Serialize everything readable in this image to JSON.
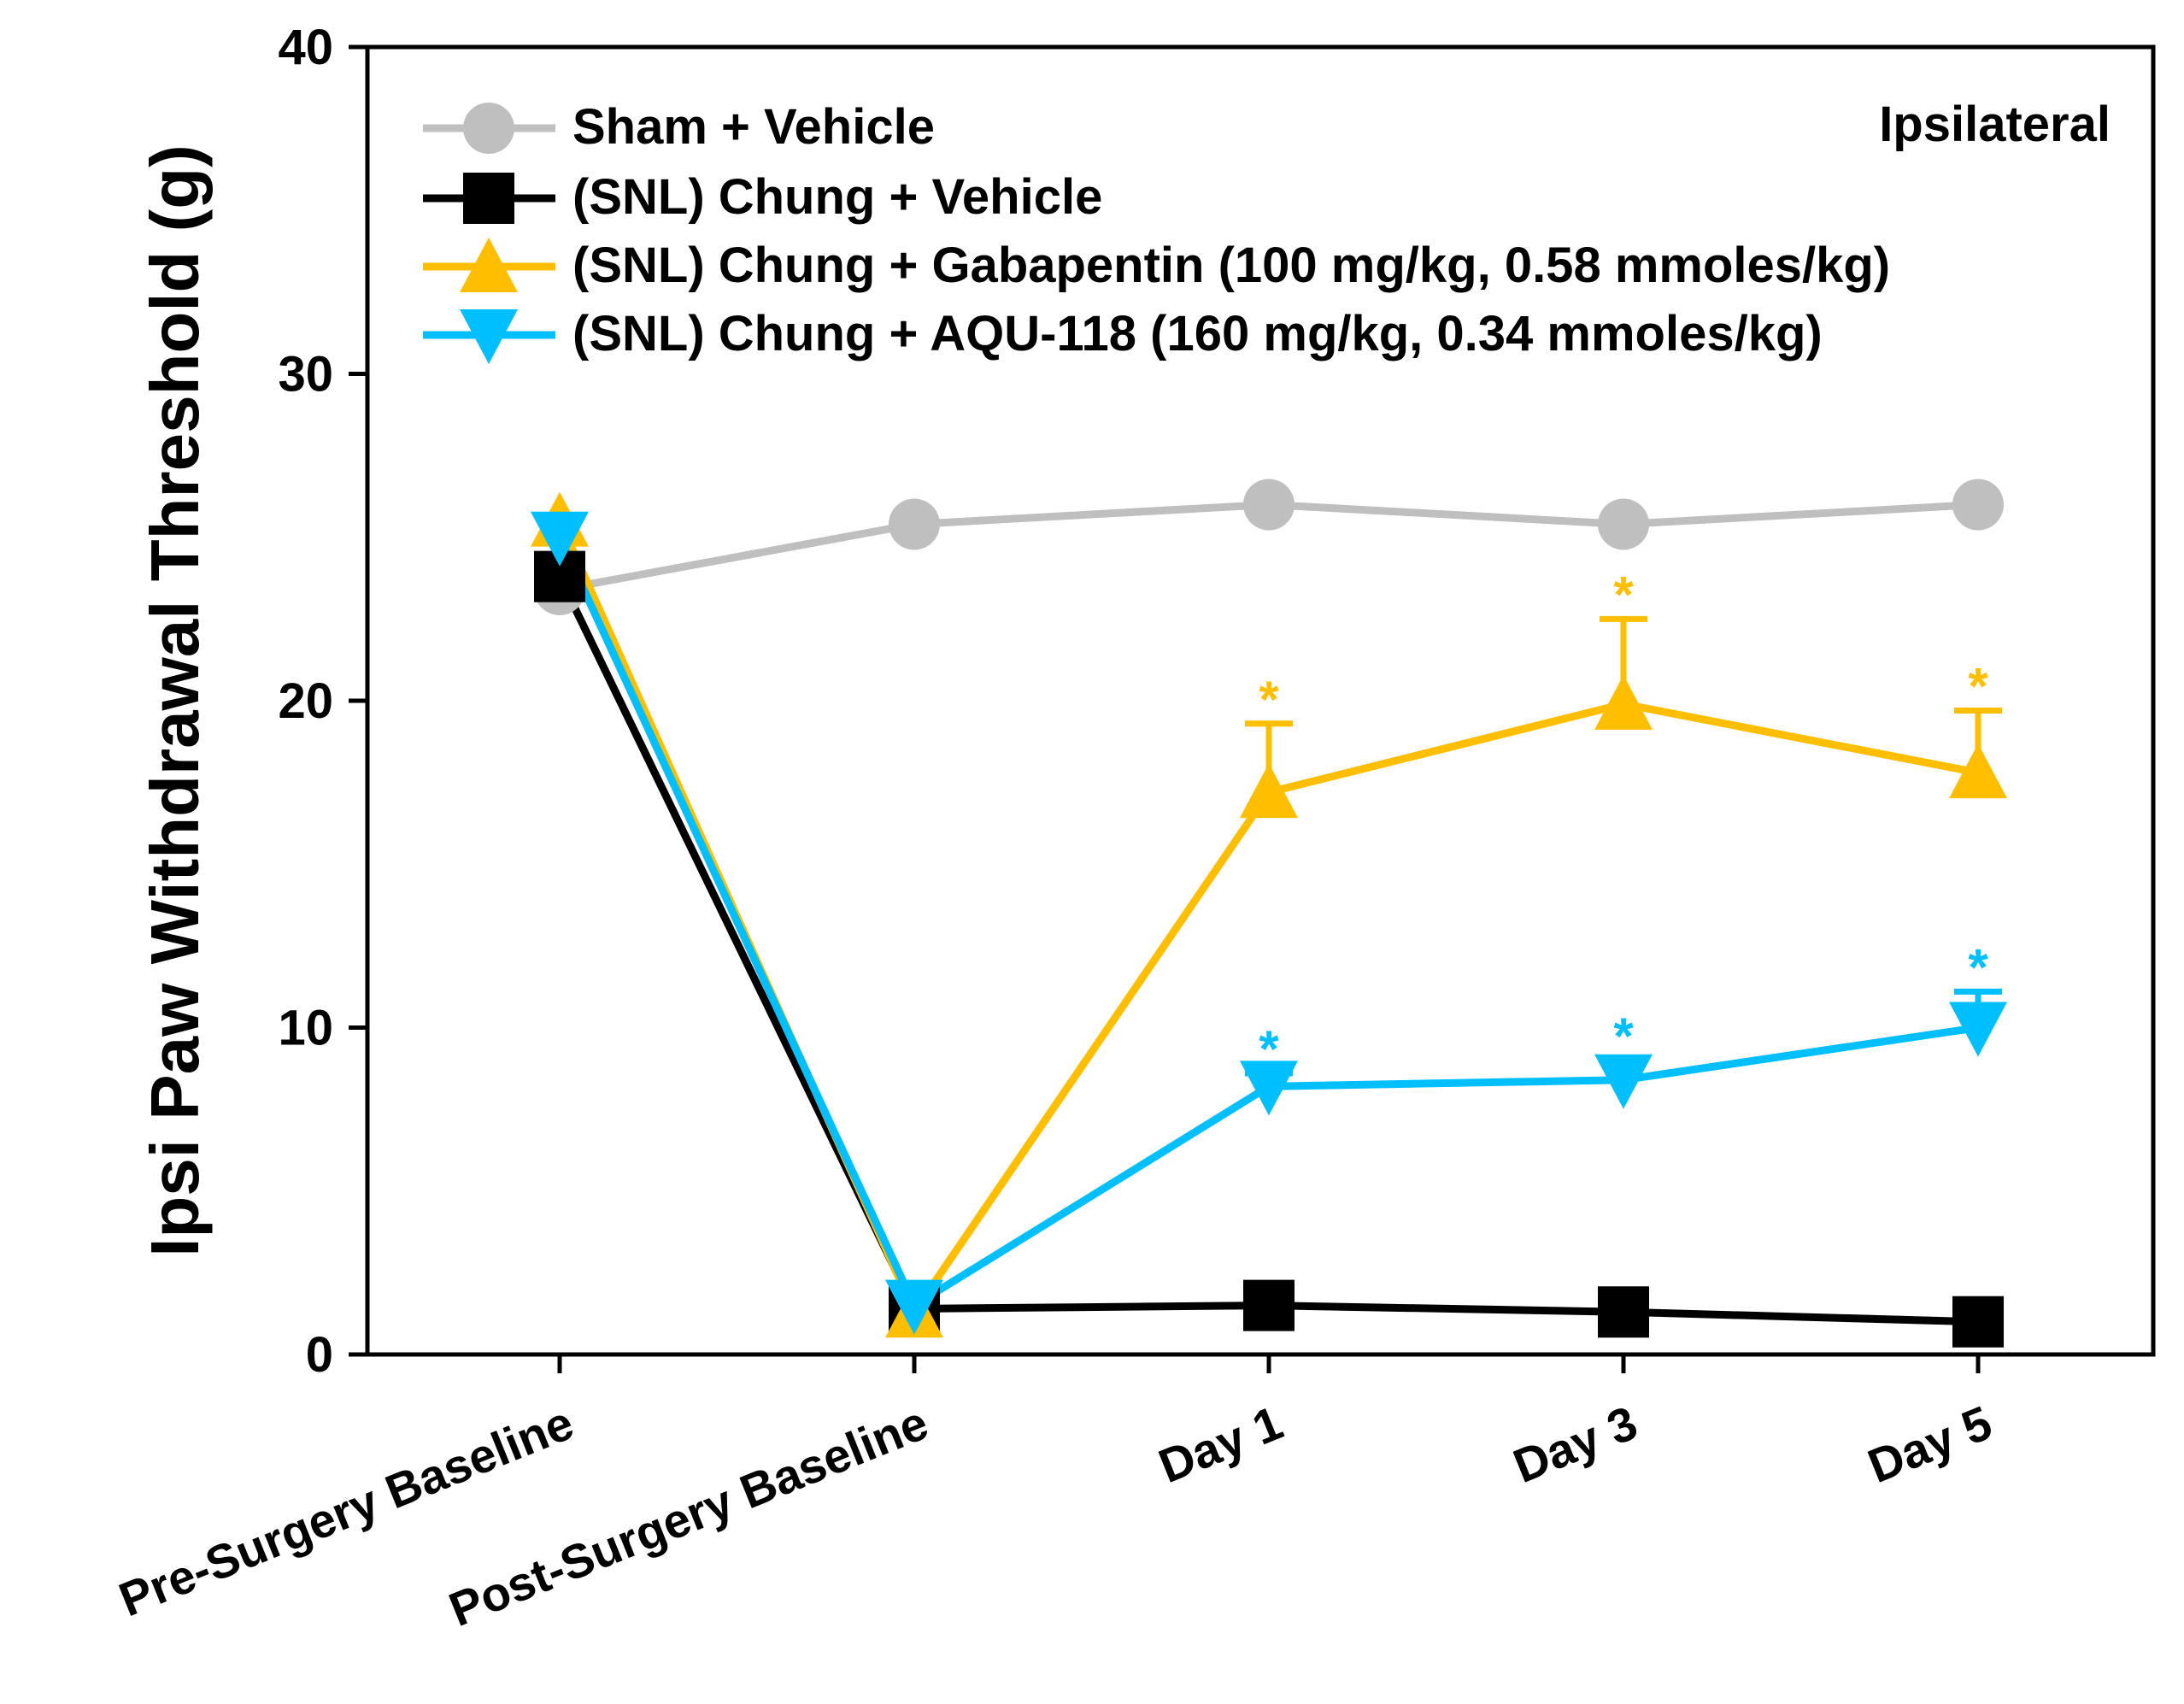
{
  "chart_data": {
    "type": "line",
    "ylabel": "Ipsi Paw Withdrawal Threshold (g)",
    "xlabel": "",
    "annotation": "Ipsilateral",
    "ylim": [
      0,
      40
    ],
    "yticks": [
      0,
      10,
      20,
      30,
      40
    ],
    "grid": false,
    "legend_position": "top-left",
    "categories": [
      "Pre-Surgery Baseline",
      "Post-Surgery Baseline",
      "Day 1",
      "Day 3",
      "Day 5"
    ],
    "series": [
      {
        "name": "Sham + Vehicle",
        "color": "#bfbfbf",
        "marker": "circle",
        "values": [
          23.4,
          25.4,
          26.0,
          25.4,
          26.0
        ],
        "errors": [
          0,
          0,
          0,
          0,
          0
        ],
        "significant": [
          false,
          false,
          false,
          false,
          false
        ]
      },
      {
        "name": "(SNL) Chung + Vehicle",
        "color": "#000000",
        "marker": "square",
        "values": [
          23.8,
          1.4,
          1.5,
          1.3,
          1.0
        ],
        "errors": [
          0,
          0,
          0,
          0,
          0
        ],
        "significant": [
          false,
          false,
          false,
          false,
          false
        ]
      },
      {
        "name": "(SNL) Chung + Gabapentin (100 mg/kg, 0.58 mmoles/kg)",
        "color": "#ffbf00",
        "marker": "triangle-up",
        "values": [
          25.5,
          1.3,
          17.2,
          19.9,
          17.8
        ],
        "errors": [
          0,
          0,
          2.1,
          2.6,
          1.9
        ],
        "significant": [
          false,
          false,
          true,
          true,
          true
        ]
      },
      {
        "name": "(SNL) Chung + AQU-118 (160 mg/kg, 0.34 mmoles/kg)",
        "color": "#00bfff",
        "marker": "triangle-down",
        "values": [
          25.0,
          1.5,
          8.2,
          8.4,
          10.0
        ],
        "errors": [
          0,
          0,
          0.4,
          0.6,
          1.1
        ],
        "significant": [
          false,
          false,
          true,
          true,
          true
        ]
      }
    ],
    "significance_symbol": "*"
  }
}
